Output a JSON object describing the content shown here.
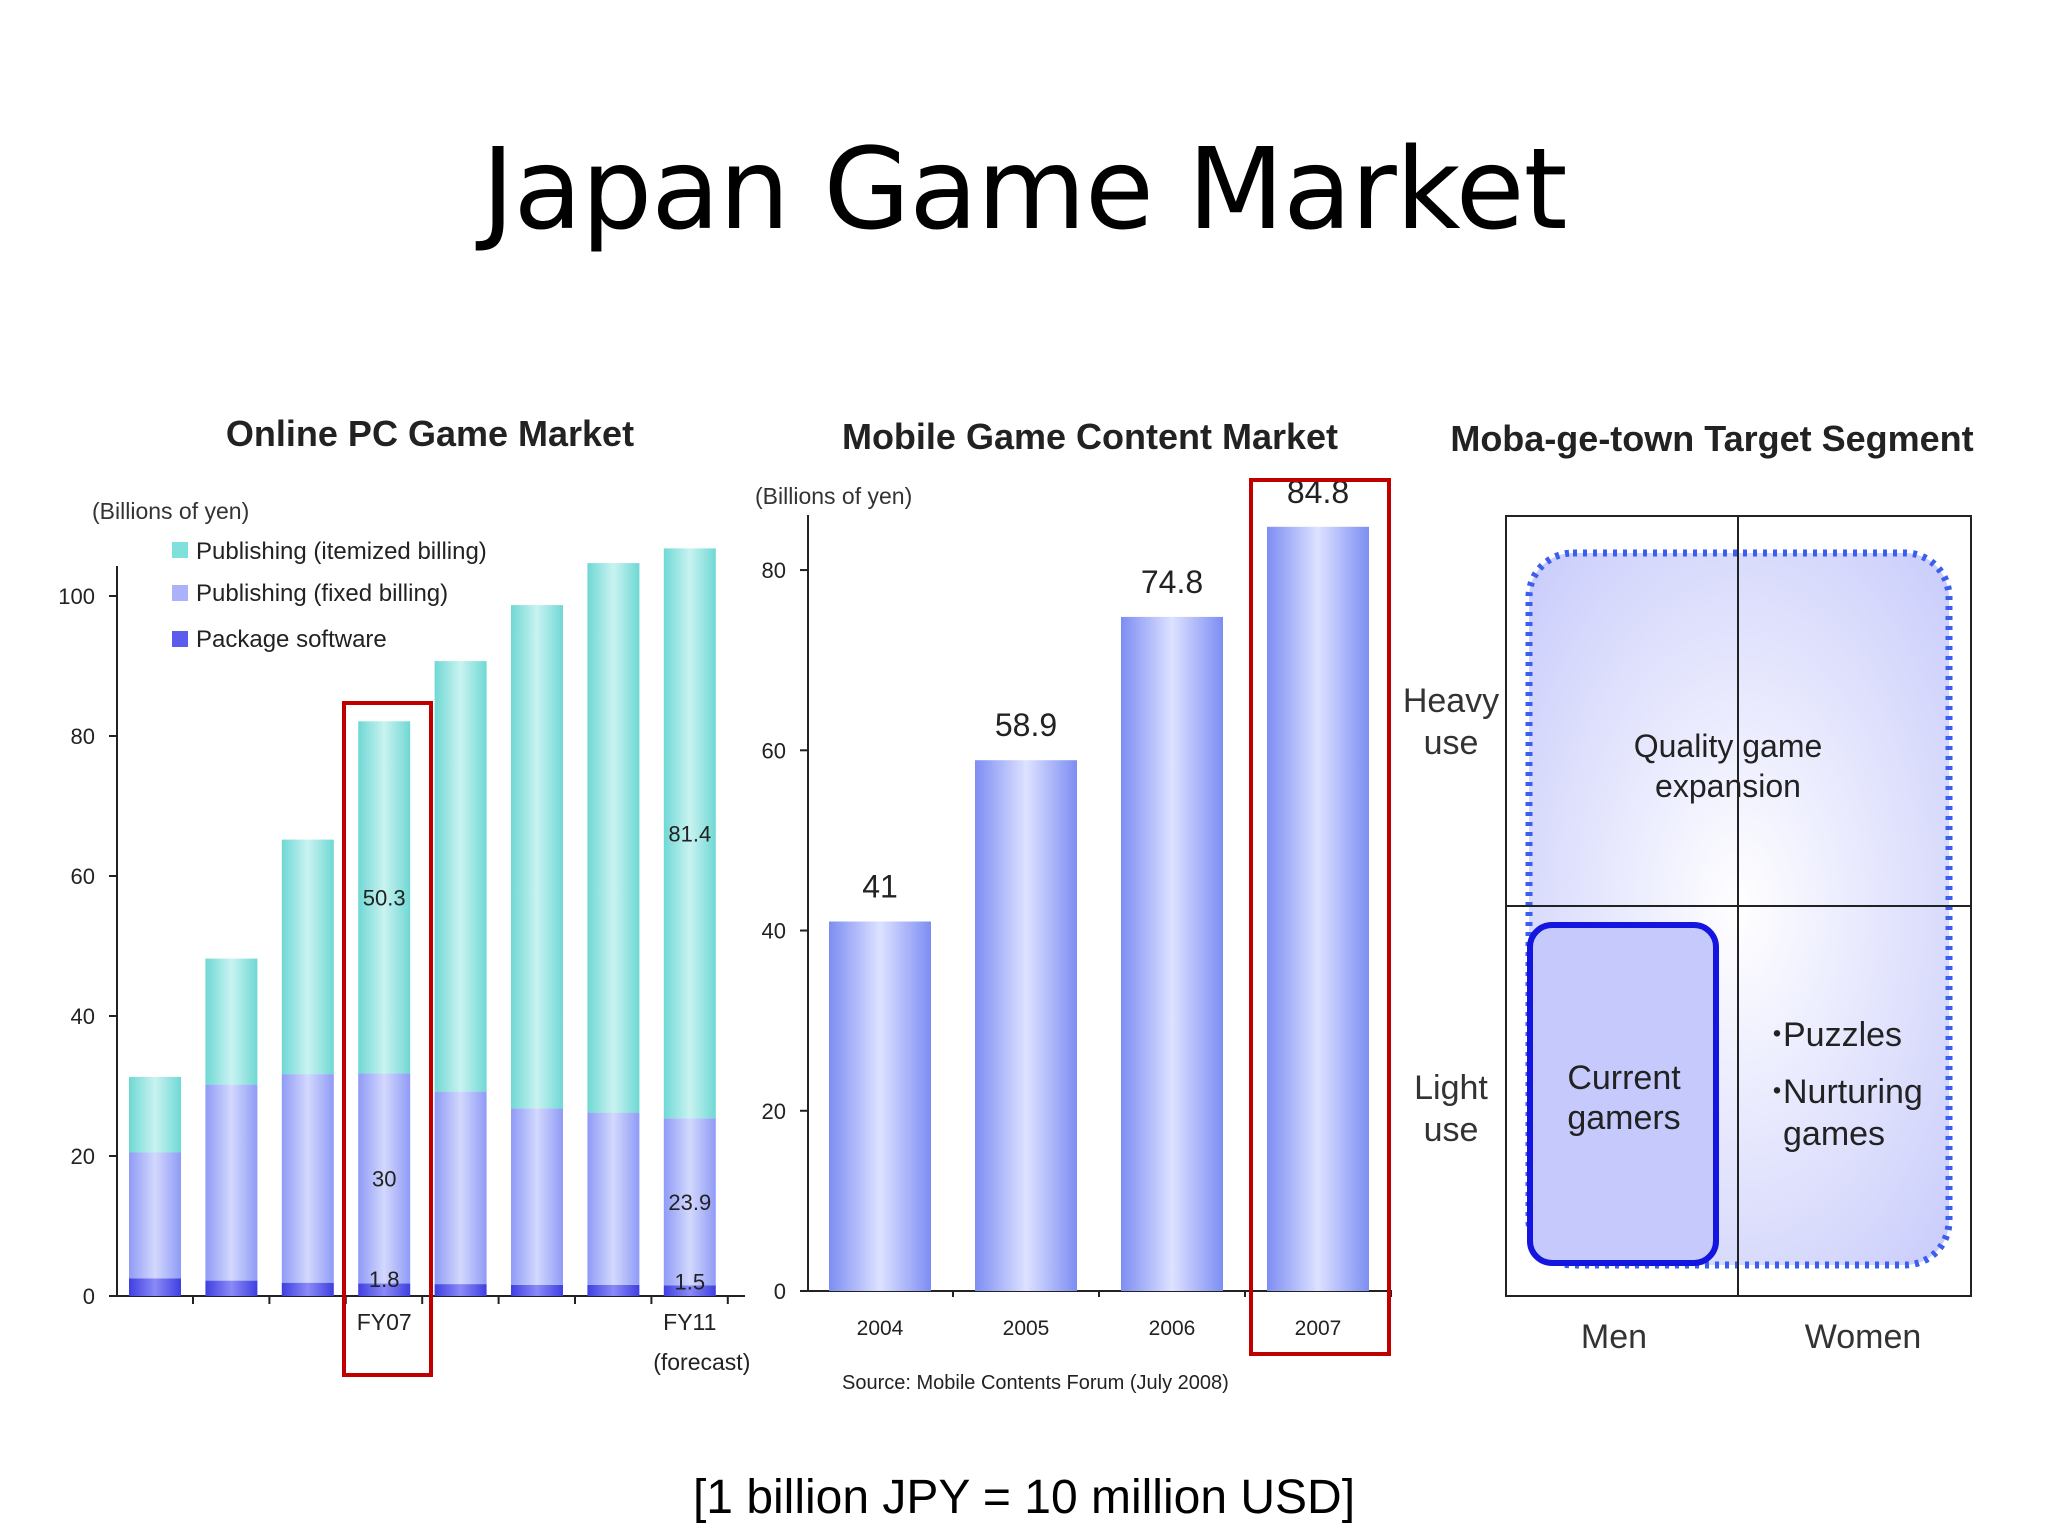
{
  "slide": {
    "title": "Japan Game Market",
    "footnote": "[1 billion JPY = 10 million USD]"
  },
  "colors": {
    "teal": "#7fe0dc",
    "lavender": "#a9b2fb",
    "blue": "#5b5bf0",
    "highlight_red": "#c00000",
    "dotted_blue": "#3a5ef0",
    "solid_blue": "#1515e0"
  },
  "chart_data": [
    {
      "type": "bar",
      "stacked": true,
      "title": "Online PC Game Market",
      "unit_label": "(Billions of yen)",
      "ylim": [
        0,
        100
      ],
      "yticks": [
        0,
        20,
        40,
        60,
        80,
        100
      ],
      "categories": [
        "",
        "",
        "",
        "FY07",
        "",
        "",
        "",
        "FY11"
      ],
      "category_sublabels": [
        "",
        "",
        "",
        "",
        "",
        "",
        "",
        "(forecast)"
      ],
      "series": [
        {
          "name": "Package software",
          "values": [
            2.5,
            2.2,
            1.9,
            1.8,
            1.7,
            1.6,
            1.6,
            1.5
          ]
        },
        {
          "name": "Publishing (fixed billing)",
          "values": [
            18,
            28,
            29.8,
            30,
            27.5,
            25.2,
            24.6,
            23.9
          ]
        },
        {
          "name": "Publishing (itemized billing)",
          "values": [
            10.8,
            18,
            33.5,
            50.3,
            61.5,
            71.9,
            78.5,
            81.4
          ]
        }
      ],
      "data_labels": [
        {
          "category_index": 3,
          "series": "Package software",
          "text": "1.8"
        },
        {
          "category_index": 3,
          "series": "Publishing (fixed billing)",
          "text": "30"
        },
        {
          "category_index": 3,
          "series": "Publishing (itemized billing)",
          "text": "50.3"
        },
        {
          "category_index": 7,
          "series": "Package software",
          "text": "1.5"
        },
        {
          "category_index": 7,
          "series": "Publishing (fixed billing)",
          "text": "23.9"
        },
        {
          "category_index": 7,
          "series": "Publishing (itemized billing)",
          "text": "81.4"
        }
      ],
      "legend": [
        "Publishing (itemized billing)",
        "Publishing (fixed billing)",
        "Package software"
      ],
      "legend_placement": "top-left",
      "highlight_category": "FY07",
      "grid": false
    },
    {
      "type": "bar",
      "title": "Mobile Game Content  Market",
      "unit_label": "(Billions of yen)",
      "ylim": [
        0,
        85
      ],
      "yticks": [
        0,
        20,
        40,
        60,
        80
      ],
      "categories": [
        "2004",
        "2005",
        "2006",
        "2007"
      ],
      "values": [
        41,
        58.9,
        74.8,
        84.8
      ],
      "value_labels": [
        "41",
        "58.9",
        "74.8",
        "84.8"
      ],
      "highlight_category": "2007",
      "source": "Source: Mobile Contents Forum  (July 2008)",
      "grid": false
    }
  ],
  "segment": {
    "title": "Moba-ge-town Target Segment",
    "row_labels": [
      {
        "line1": "Heavy",
        "line2": "use"
      },
      {
        "line1": "Light",
        "line2": "use"
      }
    ],
    "col_labels": [
      "Men",
      "Women"
    ],
    "quality_line1": "Quality game",
    "quality_line2": "expansion",
    "current_line1": "Current",
    "current_line2": "gamers",
    "bullet": "・",
    "women_line1": "Puzzles",
    "women_line2": "Nurturing",
    "women_line3": "games"
  }
}
